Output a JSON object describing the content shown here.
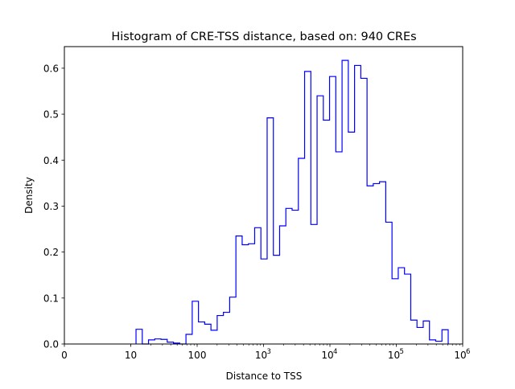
{
  "chart_data": {
    "type": "histogram",
    "title": "Histogram of CRE-TSS distance, based on: 940 CREs",
    "xlabel": "Distance to TSS",
    "ylabel": "Density",
    "xscale": "symlog",
    "linthresh": 10,
    "xlim": [
      0,
      1000000
    ],
    "ylim": [
      0,
      0.647
    ],
    "bin_range": [
      12,
      605000
    ],
    "bin_count": 50,
    "line_color": "#0000ff",
    "x_ticks": [
      {
        "value": 0,
        "label": "0",
        "exp": ""
      },
      {
        "value": 10,
        "label": "10",
        "exp": ""
      },
      {
        "value": 100,
        "label": "100",
        "exp": ""
      },
      {
        "value": 1000,
        "label": "10",
        "exp": "3"
      },
      {
        "value": 10000,
        "label": "10",
        "exp": "4"
      },
      {
        "value": 100000,
        "label": "10",
        "exp": "5"
      },
      {
        "value": 1000000,
        "label": "10",
        "exp": "6"
      }
    ],
    "y_ticks": [
      {
        "value": 0,
        "label": "0.0"
      },
      {
        "value": 0.1,
        "label": "0.1"
      },
      {
        "value": 0.2,
        "label": "0.2"
      },
      {
        "value": 0.3,
        "label": "0.3"
      },
      {
        "value": 0.4,
        "label": "0.4"
      },
      {
        "value": 0.5,
        "label": "0.5"
      },
      {
        "value": 0.6,
        "label": "0.6"
      }
    ],
    "density": [
      0.032,
      0,
      0.009,
      0.011,
      0.01,
      0.004,
      0.002,
      0,
      0.021,
      0.093,
      0.048,
      0.043,
      0.03,
      0.062,
      0.069,
      0.102,
      0.235,
      0.216,
      0.218,
      0.253,
      0.185,
      0.492,
      0.193,
      0.257,
      0.295,
      0.291,
      0.404,
      0.593,
      0.26,
      0.54,
      0.487,
      0.582,
      0.418,
      0.617,
      0.461,
      0.606,
      0.578,
      0.344,
      0.349,
      0.353,
      0.265,
      0.142,
      0.166,
      0.152,
      0.052,
      0.036,
      0.05,
      0.009,
      0.006,
      0.031
    ]
  }
}
